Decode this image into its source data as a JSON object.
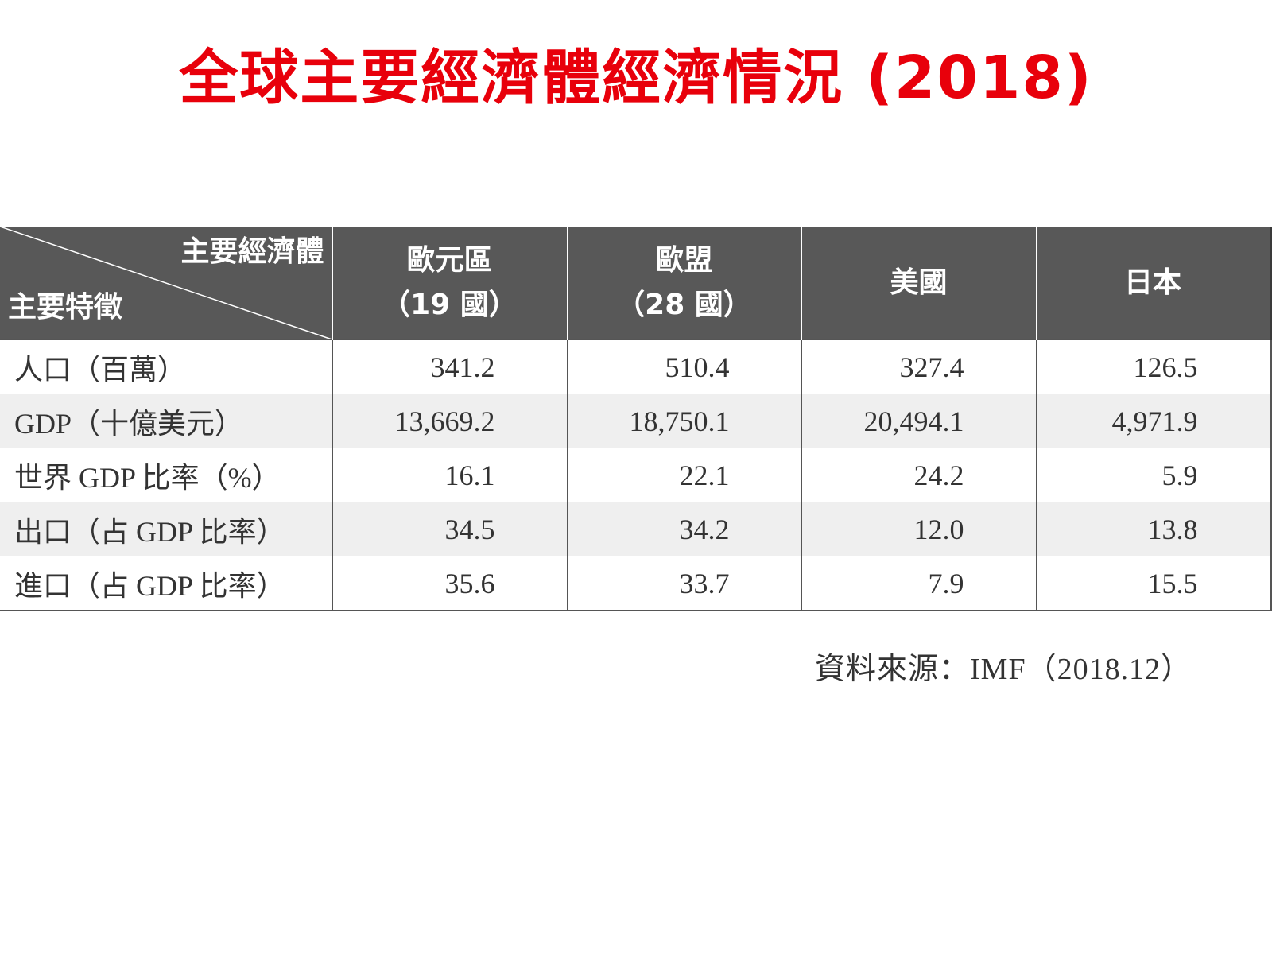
{
  "title": "全球主要經濟體經濟情況 (2018)",
  "table": {
    "corner_top_label": "主要經濟體",
    "corner_bottom_label": "主要特徵",
    "columns": [
      {
        "line1": "歐元區",
        "line2": "（19 國）"
      },
      {
        "line1": "歐盟",
        "line2": "（28 國）"
      },
      {
        "line1": "美國",
        "line2": ""
      },
      {
        "line1": "日本",
        "line2": ""
      }
    ],
    "rows": [
      {
        "label": "人口（百萬）",
        "values": [
          "341.2",
          "510.4",
          "327.4",
          "126.5"
        ]
      },
      {
        "label": "GDP（十億美元）",
        "values": [
          "13,669.2",
          "18,750.1",
          "20,494.1",
          "4,971.9"
        ]
      },
      {
        "label": "世界 GDP 比率（%）",
        "values": [
          "16.1",
          "22.1",
          "24.2",
          "5.9"
        ]
      },
      {
        "label": "出口（占 GDP 比率）",
        "values": [
          "34.5",
          "34.2",
          "12.0",
          "13.8"
        ]
      },
      {
        "label": "進口（占 GDP 比率）",
        "values": [
          "35.6",
          "33.7",
          "7.9",
          "15.5"
        ]
      }
    ]
  },
  "source": "資料來源：IMF（2018.12）",
  "colors": {
    "title": "#e8000b",
    "header_bg": "#585858",
    "header_text": "#ffffff",
    "alt_row_bg": "#efefef",
    "body_text": "#333333"
  }
}
